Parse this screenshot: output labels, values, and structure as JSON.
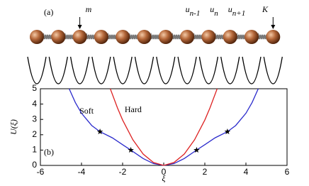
{
  "diagram": {
    "panel_label": "(a)",
    "annotations": [
      {
        "text": "m"
      },
      {
        "text": "u",
        "sub": "n-1"
      },
      {
        "text": "u",
        "sub": "n"
      },
      {
        "text": "u",
        "sub": "n+1"
      },
      {
        "text": "K"
      }
    ]
  },
  "chart_data": {
    "type": "line",
    "panel_label": "(b)",
    "x_label": "ξ",
    "y_label": "U(ξ)",
    "xlim": [
      -6,
      6
    ],
    "ylim": [
      0,
      5
    ],
    "xticks": [
      -6,
      -4,
      -2,
      0,
      2,
      4,
      6
    ],
    "yticks": [
      0,
      1,
      2,
      3,
      4,
      5
    ],
    "series": [
      {
        "name": "Soft",
        "color": "#2b2bcc",
        "x": [
          -4.6,
          -4.3,
          -4,
          -3.5,
          -3.1,
          -2.5,
          -2,
          -1.6,
          -1,
          -0.5,
          0,
          0.5,
          1,
          1.6,
          2,
          2.5,
          3.1,
          3.5,
          4,
          4.3,
          4.6
        ],
        "values": [
          5,
          4.1,
          3.4,
          2.6,
          2.2,
          1.8,
          1.35,
          1.0,
          0.45,
          0.12,
          0,
          0.12,
          0.45,
          1.0,
          1.35,
          1.8,
          2.2,
          2.6,
          3.4,
          4.1,
          5
        ]
      },
      {
        "name": "Hard",
        "color": "#dd2222",
        "x": [
          -2.6,
          -2.25,
          -2,
          -1.5,
          -1,
          -0.5,
          0,
          0.5,
          1,
          1.5,
          2,
          2.25,
          2.6
        ],
        "values": [
          5,
          3.75,
          2.96,
          1.67,
          0.74,
          0.19,
          0,
          0.19,
          0.74,
          1.67,
          2.96,
          3.75,
          5
        ]
      }
    ],
    "points": {
      "x": [
        -3.1,
        -1.6,
        1.6,
        3.1
      ],
      "y": [
        2.2,
        1.0,
        1.0,
        2.2
      ]
    }
  }
}
